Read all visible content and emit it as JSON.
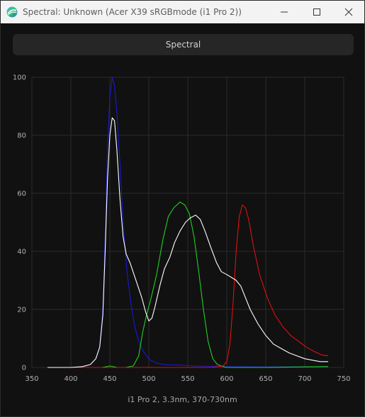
{
  "window": {
    "title": "Spectral: Unknown (Acer X39 sRGBmode (i1 Pro 2))"
  },
  "tab": {
    "label": "Spectral"
  },
  "footer": {
    "label": "i1 Pro 2, 3.3nm, 370-730nm"
  },
  "colors": {
    "background": "#111111",
    "grid": "#2a2a2a",
    "axis_text": "#b0b0b0",
    "red": "#e01010",
    "green": "#20d020",
    "blue": "#1a1ad0",
    "white": "#ffffff"
  },
  "chart_data": {
    "type": "line",
    "title": "",
    "xlabel": "",
    "ylabel": "",
    "xlim": [
      350,
      750
    ],
    "ylim": [
      0,
      100
    ],
    "x_ticks": [
      350,
      400,
      450,
      500,
      550,
      600,
      650,
      700,
      750
    ],
    "y_ticks": [
      0,
      20,
      40,
      60,
      80,
      100
    ],
    "grid": true,
    "series": [
      {
        "color": "#1a1ad0",
        "points": [
          [
            370,
            0
          ],
          [
            400,
            0
          ],
          [
            415,
            0.3
          ],
          [
            425,
            1
          ],
          [
            432,
            3
          ],
          [
            437,
            7
          ],
          [
            441,
            20
          ],
          [
            444,
            45
          ],
          [
            447,
            75
          ],
          [
            450,
            93
          ],
          [
            453,
            100
          ],
          [
            456,
            97
          ],
          [
            459,
            88
          ],
          [
            463,
            70
          ],
          [
            467,
            50
          ],
          [
            472,
            33
          ],
          [
            477,
            22
          ],
          [
            482,
            14
          ],
          [
            487,
            9
          ],
          [
            492,
            6
          ],
          [
            497,
            4
          ],
          [
            502,
            2.5
          ],
          [
            510,
            1.5
          ],
          [
            520,
            1
          ],
          [
            540,
            0.8
          ],
          [
            560,
            0.5
          ],
          [
            580,
            0.4
          ],
          [
            600,
            0.3
          ],
          [
            650,
            0.2
          ],
          [
            700,
            0.2
          ],
          [
            730,
            0.3
          ]
        ]
      },
      {
        "color": "#20d020",
        "points": [
          [
            370,
            0
          ],
          [
            440,
            0
          ],
          [
            450,
            0.5
          ],
          [
            460,
            0
          ],
          [
            470,
            0
          ],
          [
            480,
            0.5
          ],
          [
            487,
            4
          ],
          [
            492,
            12
          ],
          [
            497,
            18
          ],
          [
            503,
            24
          ],
          [
            510,
            32
          ],
          [
            518,
            44
          ],
          [
            525,
            52
          ],
          [
            532,
            55
          ],
          [
            540,
            57
          ],
          [
            546,
            56
          ],
          [
            552,
            53
          ],
          [
            558,
            45
          ],
          [
            564,
            33
          ],
          [
            570,
            20
          ],
          [
            576,
            9
          ],
          [
            582,
            3
          ],
          [
            588,
            1
          ],
          [
            595,
            0.3
          ],
          [
            600,
            0
          ],
          [
            650,
            0
          ],
          [
            700,
            0.2
          ],
          [
            730,
            0.3
          ]
        ]
      },
      {
        "color": "#e01010",
        "points": [
          [
            370,
            0
          ],
          [
            580,
            0
          ],
          [
            595,
            0.5
          ],
          [
            600,
            2
          ],
          [
            604,
            8
          ],
          [
            608,
            22
          ],
          [
            612,
            40
          ],
          [
            616,
            52
          ],
          [
            620,
            56
          ],
          [
            624,
            55
          ],
          [
            628,
            51
          ],
          [
            634,
            42
          ],
          [
            642,
            32
          ],
          [
            652,
            24
          ],
          [
            662,
            18
          ],
          [
            672,
            14
          ],
          [
            682,
            11
          ],
          [
            692,
            9
          ],
          [
            702,
            7
          ],
          [
            712,
            5.5
          ],
          [
            722,
            4.3
          ],
          [
            730,
            4
          ]
        ]
      },
      {
        "color": "#ffffff",
        "points": [
          [
            370,
            0
          ],
          [
            400,
            0
          ],
          [
            415,
            0.3
          ],
          [
            425,
            1
          ],
          [
            432,
            3
          ],
          [
            437,
            7
          ],
          [
            441,
            18
          ],
          [
            444,
            40
          ],
          [
            447,
            65
          ],
          [
            450,
            80
          ],
          [
            453,
            86
          ],
          [
            456,
            85
          ],
          [
            459,
            75
          ],
          [
            463,
            58
          ],
          [
            467,
            45
          ],
          [
            471,
            39
          ],
          [
            476,
            36
          ],
          [
            481,
            32
          ],
          [
            486,
            28
          ],
          [
            491,
            24
          ],
          [
            496,
            19
          ],
          [
            500,
            16
          ],
          [
            504,
            17
          ],
          [
            508,
            21
          ],
          [
            514,
            28
          ],
          [
            520,
            34
          ],
          [
            527,
            38
          ],
          [
            533,
            43
          ],
          [
            540,
            47
          ],
          [
            547,
            50
          ],
          [
            553,
            51.5
          ],
          [
            560,
            52.5
          ],
          [
            566,
            51
          ],
          [
            572,
            47
          ],
          [
            580,
            41
          ],
          [
            587,
            36
          ],
          [
            593,
            33
          ],
          [
            600,
            32
          ],
          [
            606,
            31
          ],
          [
            612,
            30
          ],
          [
            618,
            28
          ],
          [
            624,
            24
          ],
          [
            630,
            20
          ],
          [
            640,
            15
          ],
          [
            650,
            11
          ],
          [
            660,
            8
          ],
          [
            670,
            6.5
          ],
          [
            680,
            5
          ],
          [
            690,
            4
          ],
          [
            700,
            3
          ],
          [
            710,
            2.5
          ],
          [
            720,
            2
          ],
          [
            730,
            2
          ]
        ]
      }
    ]
  }
}
